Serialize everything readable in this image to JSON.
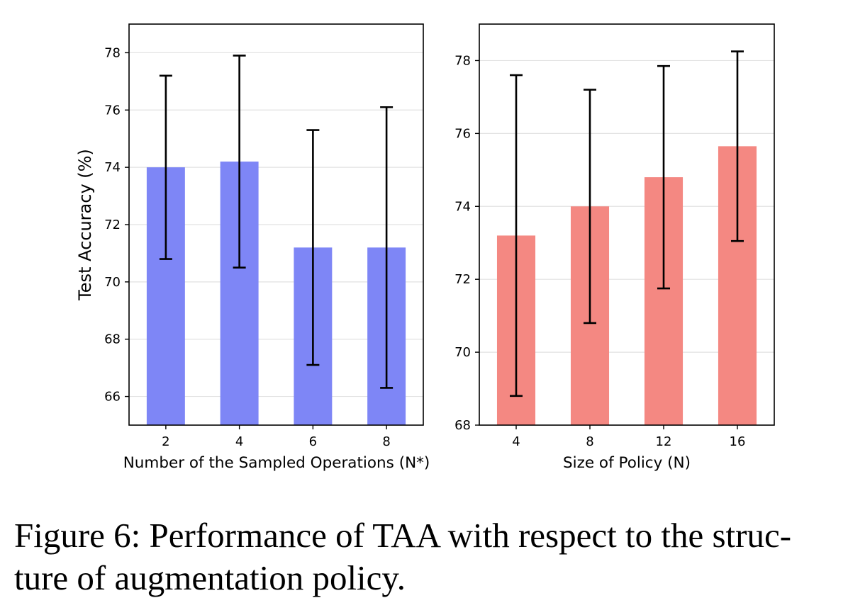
{
  "caption": {
    "line1": "Figure 6: Performance of TAA with respect to the struc-",
    "line2": "ture of augmentation policy."
  },
  "chart_data": [
    {
      "type": "bar",
      "categories": [
        "2",
        "4",
        "6",
        "8"
      ],
      "values": [
        74.0,
        74.2,
        71.2,
        71.2
      ],
      "errors": [
        3.2,
        3.7,
        4.1,
        4.9
      ],
      "xlabel": "Number of the Sampled Operations (N*)",
      "ylabel": "Test Accuracy (%)",
      "ylim": [
        65,
        79
      ],
      "yticks": [
        66,
        68,
        70,
        72,
        74,
        76,
        78
      ],
      "grid": "horizontal",
      "color": "#7e86f6"
    },
    {
      "type": "bar",
      "categories": [
        "4",
        "8",
        "12",
        "16"
      ],
      "values": [
        73.2,
        74.0,
        74.8,
        75.65
      ],
      "errors": [
        4.4,
        3.2,
        3.05,
        2.6
      ],
      "xlabel": "Size of Policy (N)",
      "ylabel": "",
      "ylim": [
        68,
        79
      ],
      "yticks": [
        68,
        70,
        72,
        74,
        76,
        78
      ],
      "grid": "horizontal",
      "color": "#f48882"
    }
  ]
}
